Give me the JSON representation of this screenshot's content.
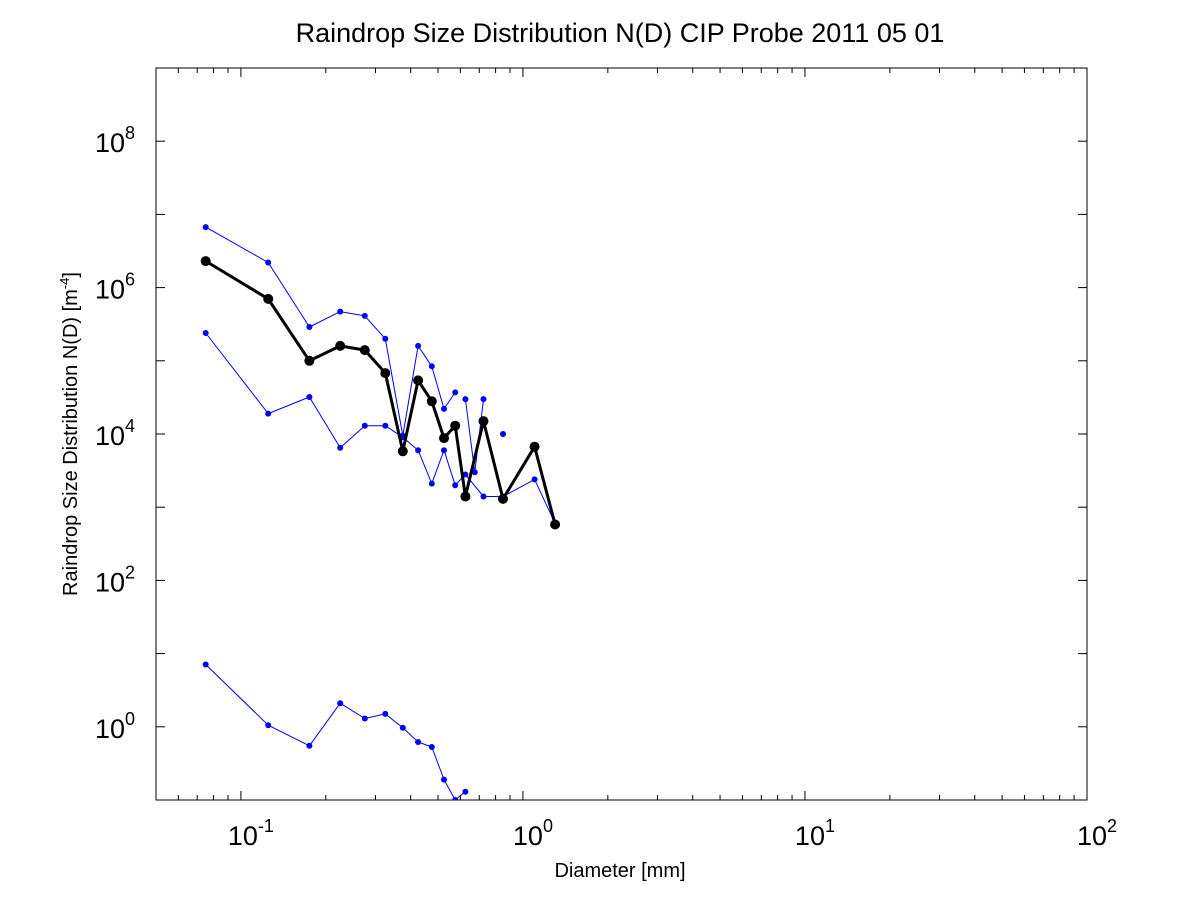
{
  "chart_data": {
    "type": "line",
    "title": "Raindrop Size Distribution N(D) CIP Probe 2011 05 01",
    "xlabel": "Diameter [mm]",
    "ylabel": {
      "base": "Raindrop Size Distribution N(D) [m",
      "sup": "-4",
      "end": "]"
    },
    "xscale": "log",
    "yscale": "log",
    "xlim": [
      0.05,
      100
    ],
    "ylim": [
      0.1,
      1000000000
    ],
    "xticks": [
      {
        "value": 0.1,
        "base": "10",
        "exp": "-1"
      },
      {
        "value": 1,
        "base": "10",
        "exp": "0"
      },
      {
        "value": 10,
        "base": "10",
        "exp": "1"
      },
      {
        "value": 100,
        "base": "10",
        "exp": "2"
      }
    ],
    "yticks": [
      {
        "value": 1,
        "base": "10",
        "exp": "0"
      },
      {
        "value": 100,
        "base": "10",
        "exp": "2"
      },
      {
        "value": 10000,
        "base": "10",
        "exp": "4"
      },
      {
        "value": 1000000,
        "base": "10",
        "exp": "6"
      },
      {
        "value": 100000000,
        "base": "10",
        "exp": "8"
      }
    ],
    "grid": false,
    "series": [
      {
        "color": "#0000ff",
        "style": "thin-dots",
        "points": [
          [
            0.075,
            6700000
          ],
          [
            0.125,
            2200000
          ],
          [
            0.175,
            290000
          ],
          [
            0.225,
            470000
          ],
          [
            0.275,
            410000
          ],
          [
            0.325,
            200000
          ],
          [
            0.375,
            9500
          ],
          [
            0.425,
            160000
          ],
          [
            0.475,
            84000
          ],
          [
            0.525,
            22000
          ],
          [
            0.575,
            37000
          ],
          [
            null,
            null
          ],
          [
            0.625,
            30000
          ],
          [
            0.675,
            3000
          ],
          [
            0.725,
            30000
          ],
          [
            null,
            null
          ],
          [
            0.85,
            10000
          ]
        ]
      },
      {
        "color": "#0000ff",
        "style": "thin-dots",
        "points": [
          [
            0.075,
            240000
          ],
          [
            0.125,
            19000
          ],
          [
            0.175,
            32000
          ],
          [
            0.225,
            6500
          ],
          [
            0.275,
            13000
          ],
          [
            0.325,
            13000
          ],
          [
            0.375,
            9000
          ],
          [
            0.425,
            6000
          ],
          [
            0.475,
            2100
          ],
          [
            0.525,
            6000
          ],
          [
            0.575,
            2000
          ],
          [
            0.625,
            2800
          ],
          [
            0.725,
            1400
          ],
          [
            0.85,
            1400
          ],
          [
            1.1,
            2400
          ],
          [
            1.3,
            600
          ]
        ]
      },
      {
        "color": "#0000ff",
        "style": "thin-dots",
        "points": [
          [
            0.075,
            7.1
          ],
          [
            0.125,
            1.05
          ],
          [
            0.175,
            0.55
          ],
          [
            0.225,
            2.1
          ],
          [
            0.275,
            1.3
          ],
          [
            0.325,
            1.5
          ],
          [
            0.375,
            0.97
          ],
          [
            0.425,
            0.62
          ],
          [
            0.475,
            0.53
          ],
          [
            0.525,
            0.19
          ],
          [
            0.575,
            0.1
          ],
          [
            0.625,
            0.13
          ]
        ]
      },
      {
        "color": "#000000",
        "style": "thick-dots",
        "points": [
          [
            0.075,
            2300000
          ],
          [
            0.125,
            700000
          ],
          [
            0.175,
            100000
          ],
          [
            0.225,
            160000
          ],
          [
            0.275,
            140000
          ],
          [
            0.325,
            68000
          ],
          [
            0.375,
            5800
          ],
          [
            0.425,
            54000
          ],
          [
            0.475,
            28000
          ],
          [
            0.525,
            8800
          ],
          [
            0.575,
            13000
          ],
          [
            0.625,
            1400
          ],
          [
            0.725,
            15000
          ],
          [
            0.85,
            1300
          ],
          [
            1.1,
            6700
          ],
          [
            1.3,
            580
          ]
        ]
      }
    ]
  }
}
